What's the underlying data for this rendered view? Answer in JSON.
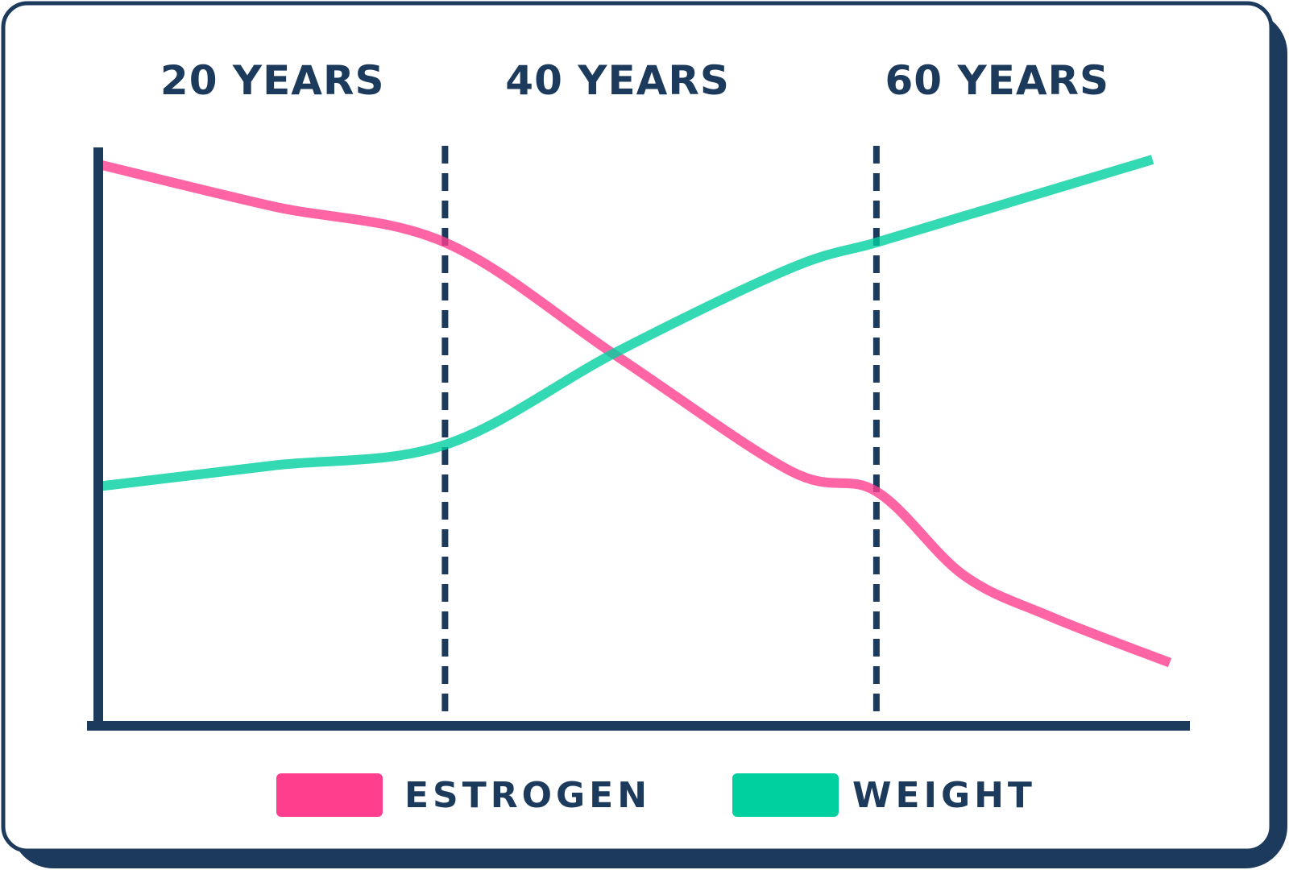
{
  "colors": {
    "frame": "#1c3a5c",
    "estrogen": "#ff3e8e",
    "weight": "#00d09f",
    "background": "#ffffff"
  },
  "chart_data": {
    "type": "line",
    "title": "",
    "xlabel": "",
    "ylabel": "",
    "grid": false,
    "legend_position": "bottom-center",
    "xlim": [
      10,
      72
    ],
    "ylim": [
      0,
      100
    ],
    "x_markers": [
      {
        "x": 20,
        "label": "20 YEARS",
        "line": false
      },
      {
        "x": 30,
        "label": "",
        "line": true
      },
      {
        "x": 40,
        "label": "40 YEARS",
        "line": false
      },
      {
        "x": 55,
        "label": "",
        "line": true
      },
      {
        "x": 62,
        "label": "60 YEARS",
        "line": false
      }
    ],
    "series": [
      {
        "name": "ESTROGEN",
        "color": "#ff3e8e",
        "x": [
          10,
          20,
          30,
          40,
          50,
          55,
          60,
          65,
          72
        ],
        "y": [
          99,
          91,
          84,
          62,
          40,
          36,
          20,
          12,
          3
        ]
      },
      {
        "name": "WEIGHT",
        "color": "#00d09f",
        "x": [
          10,
          20,
          30,
          40,
          50,
          55,
          60,
          65,
          71
        ],
        "y": [
          37,
          41,
          45,
          63,
          79,
          84,
          89,
          94,
          100
        ]
      }
    ]
  }
}
